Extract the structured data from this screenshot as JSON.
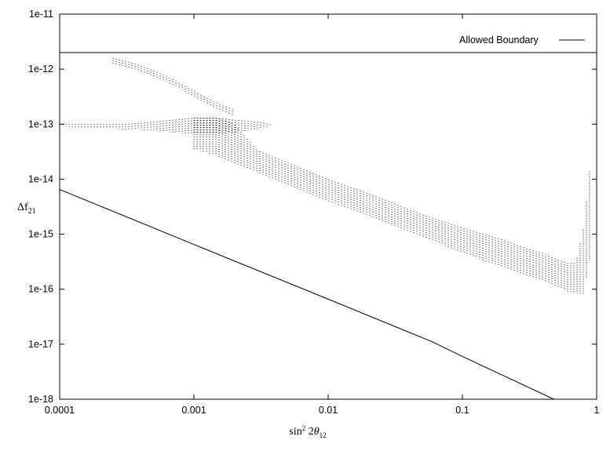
{
  "chart_data": {
    "type": "scatter",
    "xscale": "log",
    "yscale": "log",
    "xlim": [
      0.0001,
      1
    ],
    "ylim": [
      1e-18,
      1e-11
    ],
    "xlabel": "sin² 2θ₁₂",
    "xlabel_parts": {
      "sin": "sin",
      "sup": "2",
      "mid": " 2",
      "theta": "θ",
      "sub": "12"
    },
    "ylabel": "Δf₂₁",
    "ylabel_parts": {
      "main": "Δf",
      "sub": "21"
    },
    "xticks": [
      "0.0001",
      "0.001",
      "0.01",
      "0.1",
      "1"
    ],
    "xtick_values": [
      0.0001,
      0.001,
      0.01,
      0.1,
      1
    ],
    "yticks": [
      "1e-18",
      "1e-17",
      "1e-16",
      "1e-15",
      "1e-14",
      "1e-13",
      "1e-12",
      "1e-11"
    ],
    "ytick_values": [
      1e-18,
      1e-17,
      1e-16,
      1e-15,
      1e-14,
      1e-13,
      1e-12,
      1e-11
    ],
    "legend": {
      "label": "Allowed Boundary",
      "placement": "top-right"
    },
    "boundary": {
      "x": [
        0.0001,
        1
      ],
      "y": [
        2e-12,
        2e-12
      ]
    },
    "lower_line": {
      "x": [
        0.0001,
        0.001,
        0.01,
        0.06,
        0.1,
        0.48
      ],
      "y": [
        6.5e-15,
        6.5e-16,
        6.6e-17,
        1.1e-17,
        6e-18,
        1e-18
      ]
    },
    "scatter_bands": [
      {
        "x": [
          0.00025,
          0.00035,
          0.0005,
          0.0007,
          0.001,
          0.0014,
          0.002
        ],
        "ylow": [
          1.2e-12,
          1e-12,
          7.5e-13,
          5.2e-13,
          3.2e-13,
          2e-13,
          1.4e-13
        ],
        "yhigh": [
          1.6e-12,
          1.3e-12,
          9.5e-13,
          6.5e-13,
          4e-13,
          2.6e-13,
          1.8e-13
        ]
      },
      {
        "x": [
          0.0001,
          0.0002,
          0.0003,
          0.0005,
          0.0007,
          0.001,
          0.0015,
          0.002,
          0.003,
          0.0037
        ],
        "ylow": [
          9e-14,
          8.5e-14,
          8e-14,
          7.5e-14,
          7e-14,
          6.5e-14,
          6.5e-14,
          7e-14,
          8e-14,
          9e-14
        ],
        "yhigh": [
          1e-13,
          1e-13,
          1e-13,
          1.1e-13,
          1.2e-13,
          1.3e-13,
          1.3e-13,
          1.2e-13,
          1.1e-13,
          1e-13
        ]
      },
      {
        "x": [
          0.001,
          0.0015,
          0.002,
          0.003,
          0.005,
          0.01,
          0.02,
          0.05,
          0.1,
          0.2,
          0.3,
          0.4,
          0.5,
          0.6,
          0.7,
          0.8,
          0.9
        ],
        "ylow": [
          3.5e-14,
          2.6e-14,
          1.9e-14,
          1.3e-14,
          8e-15,
          4e-15,
          2.2e-15,
          9e-16,
          4.5e-16,
          2.5e-16,
          1.8e-16,
          1.4e-16,
          1.1e-16,
          9e-17,
          8.5e-17,
          8e-17,
          4e-16
        ],
        "yhigh": [
          1.3e-13,
          1.3e-13,
          1e-13,
          3.3e-14,
          2e-14,
          1e-14,
          5.5e-15,
          2.3e-15,
          1.3e-15,
          8e-16,
          5.5e-16,
          4.5e-16,
          3.5e-16,
          3e-16,
          3e-16,
          1.3e-15,
          2e-14
        ]
      }
    ]
  }
}
